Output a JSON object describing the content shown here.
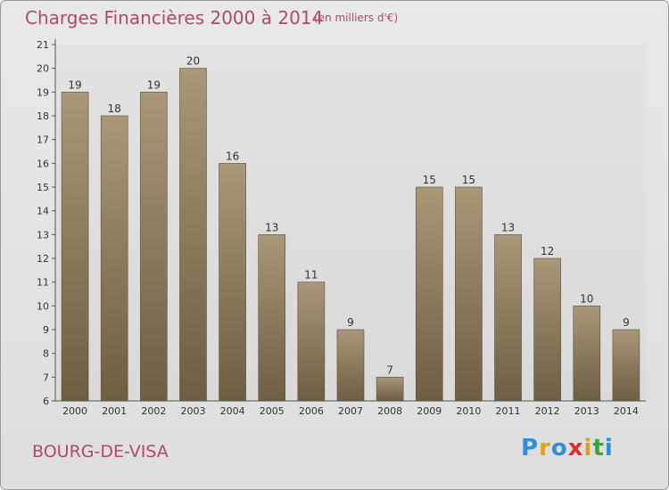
{
  "header": {
    "title": "Charges Financières 2000 à 2014",
    "subtitle": "(en milliers d'€)"
  },
  "footer": {
    "town": "BOURG-DE-VISA",
    "logo_letters": [
      "P",
      "r",
      "o",
      "x",
      "i",
      "t",
      "i"
    ],
    "logo_colors": [
      "#2f8fd8",
      "#e3a11a",
      "#2f8fd8",
      "#d8312f",
      "#e3a11a",
      "#3aa53a",
      "#2f8fd8"
    ]
  },
  "chart_data": {
    "type": "bar",
    "categories": [
      "2000",
      "2001",
      "2002",
      "2003",
      "2004",
      "2005",
      "2006",
      "2007",
      "2008",
      "2009",
      "2010",
      "2011",
      "2012",
      "2013",
      "2014"
    ],
    "values": [
      19,
      18,
      19,
      20,
      16,
      13,
      11,
      9,
      7,
      15,
      15,
      13,
      12,
      10,
      9
    ],
    "ylim": [
      6,
      21
    ],
    "yticks": [
      6,
      7,
      8,
      9,
      10,
      11,
      12,
      13,
      14,
      15,
      16,
      17,
      18,
      19,
      20,
      21
    ],
    "xlabel": "",
    "ylabel": "",
    "grid": false,
    "bar_color_top": "#a89878",
    "bar_color_bottom": "#6e5e42"
  }
}
